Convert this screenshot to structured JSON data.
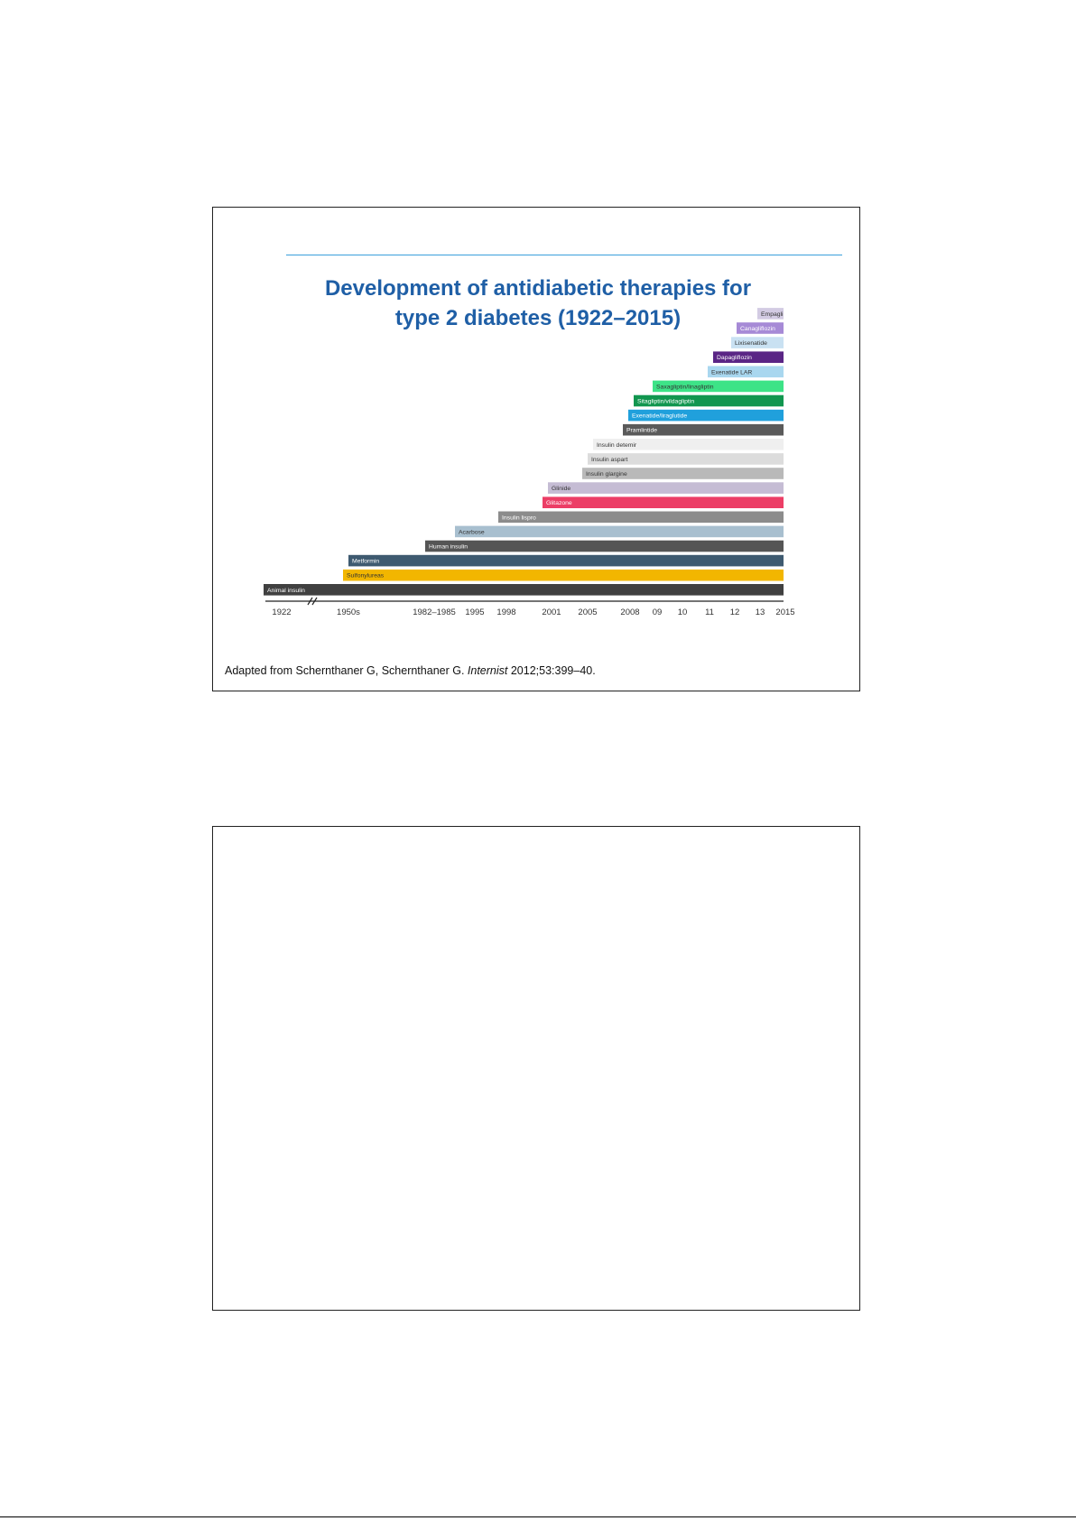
{
  "slide1": {
    "title_line1": "Development of antidiabetic therapies for",
    "title_line2": "type 2 diabetes (1922–2015)",
    "citation": {
      "prefix": "Adapted from Schernthaner G, Schernthaner G. ",
      "journal": "Internist",
      "suffix": " 2012;53:399–40."
    }
  },
  "chart_data": {
    "type": "bar",
    "orientation": "horizontal timeline",
    "x_ticks": [
      "1922",
      "1950s",
      "1982–1985",
      "1995",
      "1998",
      "2001",
      "2005",
      "2008",
      "09",
      "10",
      "11",
      "12",
      "13",
      "2015"
    ],
    "x_end": "2015",
    "axis_break_between": [
      "1922",
      "1950s"
    ],
    "series": [
      {
        "label": "Animal insulin",
        "start": "1922",
        "color": "#404040",
        "text_color": "#ffffff"
      },
      {
        "label": "Sulfonylureas",
        "start": "1950s",
        "color": "#f2b600",
        "text_color": "#333333"
      },
      {
        "label": "Metformin",
        "start": "1950s",
        "color": "#3e5a70",
        "text_color": "#ffffff"
      },
      {
        "label": "Human insulin",
        "start": "1982–1985",
        "color": "#555555",
        "text_color": "#ffffff"
      },
      {
        "label": "Acarbose",
        "start": "1995",
        "color": "#a8bfcf",
        "text_color": "#333333"
      },
      {
        "label": "Insulin lispro",
        "start": "1998",
        "color": "#8c8c8c",
        "text_color": "#ffffff"
      },
      {
        "label": "Glitazone",
        "start": "2001",
        "color": "#ec3e66",
        "text_color": "#ffffff"
      },
      {
        "label": "Glinide",
        "start": "2001",
        "color": "#c5bcd4",
        "text_color": "#333333"
      },
      {
        "label": "Insulin glargine",
        "start": "2005",
        "color": "#b9b9b9",
        "text_color": "#333333"
      },
      {
        "label": "Insulin aspart",
        "start": "2005",
        "color": "#dcdcdc",
        "text_color": "#333333"
      },
      {
        "label": "Insulin detemir",
        "start": "2005",
        "color": "#efefef",
        "text_color": "#333333"
      },
      {
        "label": "Pramlintide",
        "start": "2008",
        "color": "#5a5a5a",
        "text_color": "#ffffff"
      },
      {
        "label": "Exenatide/liraglutide",
        "start": "2008",
        "color": "#20a0dc",
        "text_color": "#ffffff"
      },
      {
        "label": "Sitagliptin/vildagliptin",
        "start": "2008",
        "color": "#11964f",
        "text_color": "#ffffff"
      },
      {
        "label": "Saxagliptin/linagliptin",
        "start": "09",
        "color": "#3de387",
        "text_color": "#333333"
      },
      {
        "label": "Exenatide LAR",
        "start": "11",
        "color": "#a9d7ef",
        "text_color": "#333333"
      },
      {
        "label": "Dapagliflozin",
        "start": "11",
        "color": "#5a2585",
        "text_color": "#ffffff"
      },
      {
        "label": "Lixisenatide",
        "start": "12",
        "color": "#c9e1f2",
        "text_color": "#333333"
      },
      {
        "label": "Canagliflozin",
        "start": "12",
        "color": "#a68ad6",
        "text_color": "#ffffff"
      },
      {
        "label": "Empagli",
        "start": "13",
        "color": "#d3cbe3",
        "text_color": "#333333"
      }
    ]
  },
  "slide2": {}
}
